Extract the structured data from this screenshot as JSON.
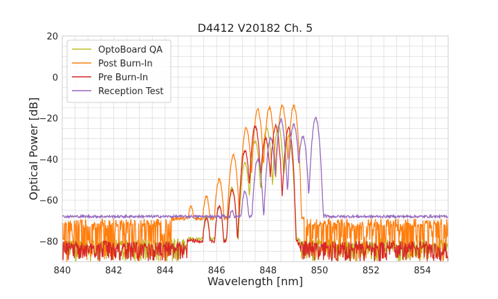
{
  "chart_data": {
    "type": "line",
    "title": "D4412 V20182 Ch. 5",
    "xlabel": "Wavelength [nm]",
    "ylabel": "Optical Power [dB]",
    "xlim": [
      840,
      855
    ],
    "ylim": [
      -90,
      20
    ],
    "xticks": [
      "840",
      "842",
      "844",
      "846",
      "848",
      "850",
      "852",
      "854"
    ],
    "yticks": [
      "20",
      "0",
      "−20",
      "−40",
      "−60",
      "−80"
    ],
    "grid": true,
    "legend_position": "top-left",
    "series": [
      {
        "name": "OptoBoard QA",
        "color": "#bcbd22",
        "peaks": [
          [
            845.6,
            -68
          ],
          [
            846.1,
            -63
          ],
          [
            846.6,
            -54
          ],
          [
            847.1,
            -42
          ],
          [
            847.5,
            -31
          ],
          [
            847.95,
            -25
          ],
          [
            848.4,
            -24
          ],
          [
            848.8,
            -29
          ]
        ],
        "plateau": -79,
        "edges": [
          845.0,
          849.1
        ],
        "noise_min": -90
      },
      {
        "name": "Post Burn-In",
        "color": "#ff7f0e",
        "peaks": [
          [
            845.0,
            -63
          ],
          [
            845.6,
            -58
          ],
          [
            846.1,
            -50
          ],
          [
            846.65,
            -38
          ],
          [
            847.15,
            -25
          ],
          [
            847.6,
            -16
          ],
          [
            848.05,
            -15
          ],
          [
            848.55,
            -14
          ],
          [
            849.0,
            -14
          ]
        ],
        "plateau": -69,
        "edges": [
          844.4,
          849.25
        ],
        "noise_min": -90
      },
      {
        "name": "Pre Burn-In",
        "color": "#d62728",
        "peaks": [
          [
            845.6,
            -69
          ],
          [
            846.1,
            -63
          ],
          [
            846.6,
            -55
          ],
          [
            847.1,
            -36
          ],
          [
            847.5,
            -24
          ],
          [
            847.9,
            -30
          ],
          [
            848.3,
            -24
          ],
          [
            848.8,
            -25
          ]
        ],
        "plateau": -80,
        "edges": [
          845.0,
          849.0
        ],
        "noise_min": -90
      },
      {
        "name": "Reception Test",
        "color": "#9467bd",
        "peaks": [
          [
            846.6,
            -65
          ],
          [
            847.1,
            -56
          ],
          [
            847.6,
            -40
          ],
          [
            848.1,
            -30
          ],
          [
            848.5,
            -21
          ],
          [
            849.0,
            -23
          ],
          [
            849.35,
            -29
          ],
          [
            849.85,
            -20
          ]
        ],
        "plateau": -68,
        "edges": [
          846.2,
          850.2
        ],
        "noise_min": -70
      }
    ]
  }
}
